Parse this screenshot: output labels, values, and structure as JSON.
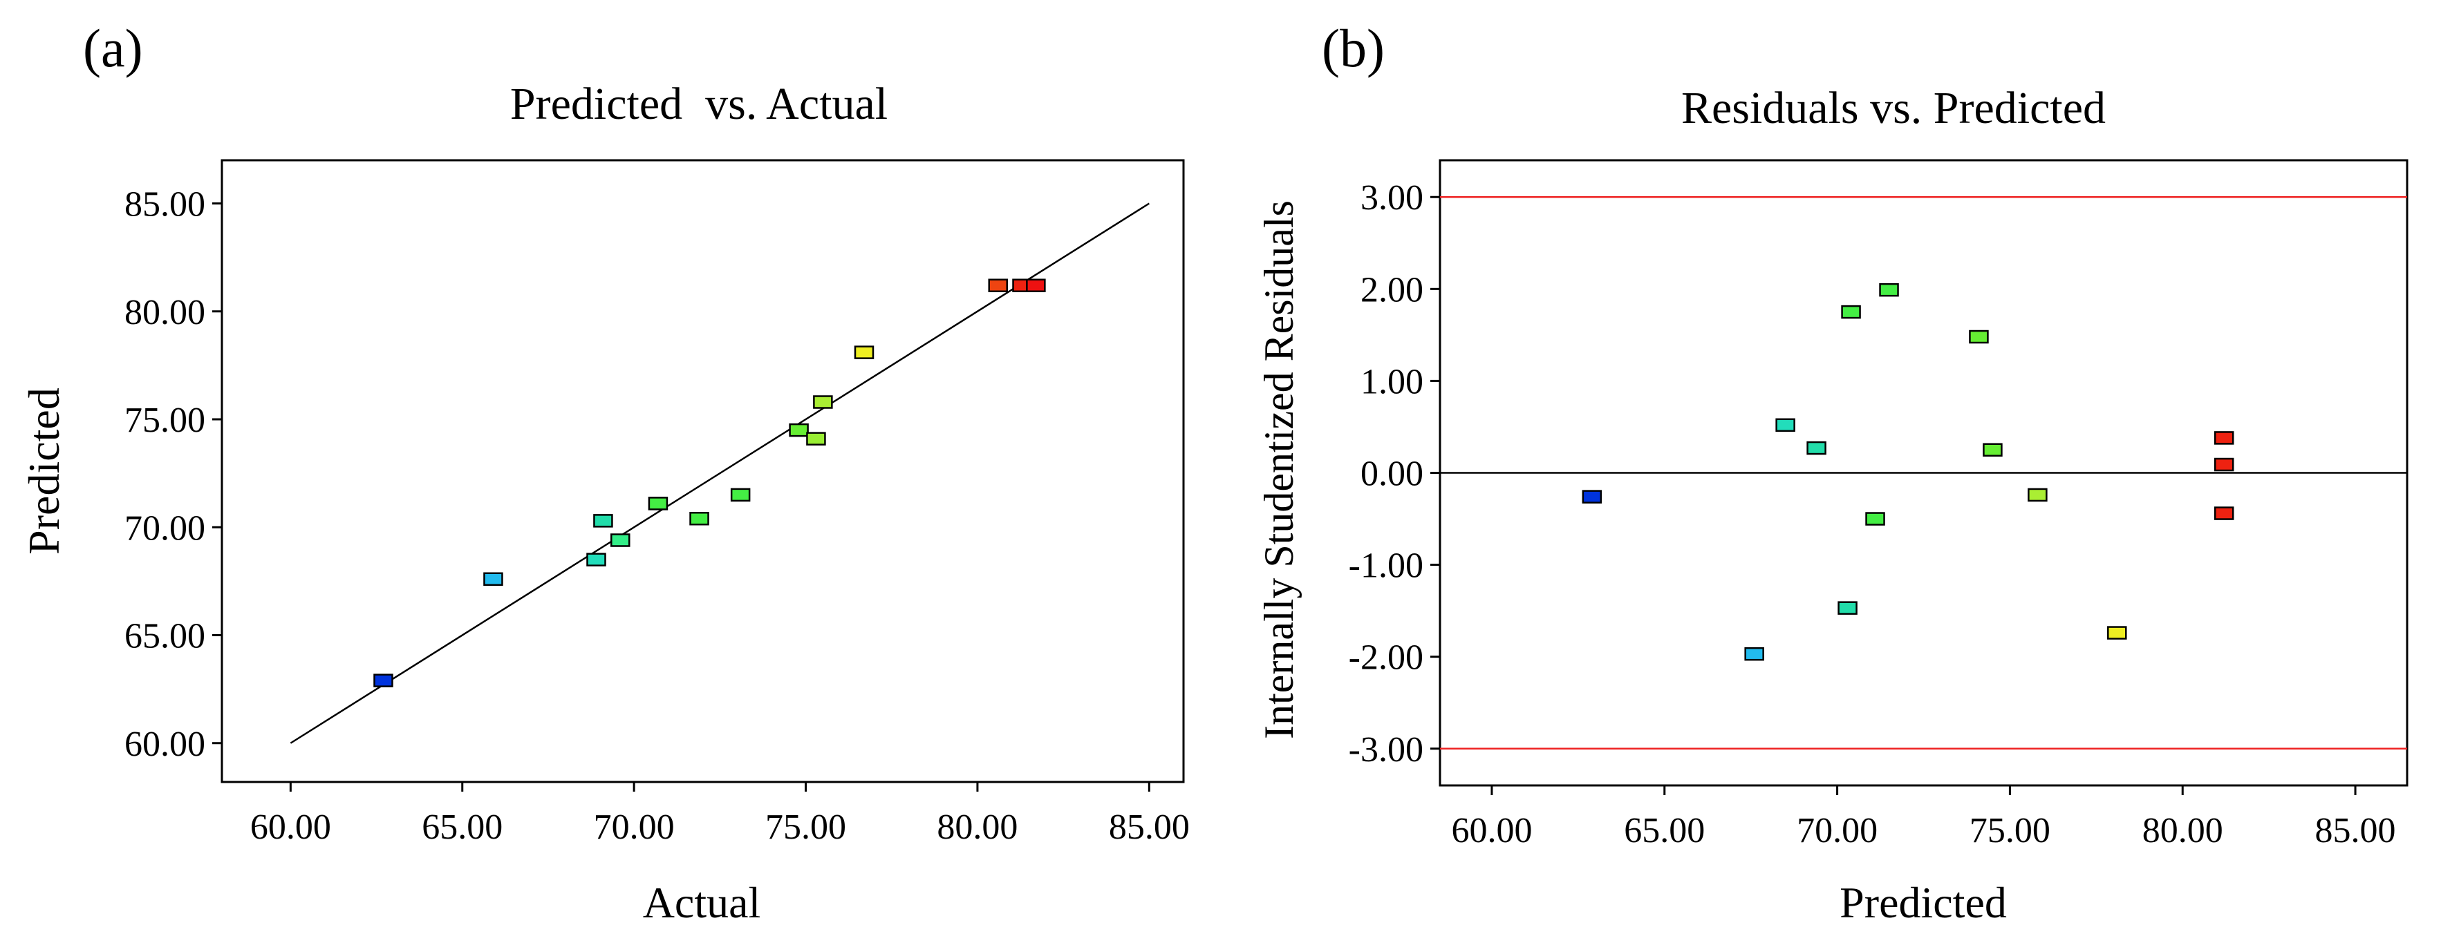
{
  "chart_data": [
    {
      "panel_label": "(a)",
      "type": "scatter",
      "title": "Predicted  vs. Actual",
      "xlabel": "Actual",
      "ylabel": "Predicted",
      "xlim": [
        58.0,
        86.0
      ],
      "ylim": [
        58.2,
        87.0
      ],
      "xticks": [
        60,
        65,
        70,
        75,
        80,
        85
      ],
      "xtick_labels": [
        "60.00",
        "65.00",
        "70.00",
        "75.00",
        "80.00",
        "85.00"
      ],
      "yticks": [
        60,
        65,
        70,
        75,
        80,
        85
      ],
      "ytick_labels": [
        "60.00",
        "65.00",
        "70.00",
        "75.00",
        "80.00",
        "85.00"
      ],
      "reference_line": {
        "from": [
          60,
          60
        ],
        "to": [
          85,
          85
        ],
        "color": "#000000"
      },
      "points": [
        {
          "x": 62.7,
          "y": 62.9,
          "color": "#0033dd"
        },
        {
          "x": 65.9,
          "y": 67.6,
          "color": "#22bbee"
        },
        {
          "x": 68.9,
          "y": 68.5,
          "color": "#22ddbb"
        },
        {
          "x": 69.1,
          "y": 70.3,
          "color": "#22ddaa"
        },
        {
          "x": 69.6,
          "y": 69.4,
          "color": "#33ee88"
        },
        {
          "x": 70.7,
          "y": 71.1,
          "color": "#44ee44"
        },
        {
          "x": 71.9,
          "y": 70.4,
          "color": "#44ee44"
        },
        {
          "x": 73.1,
          "y": 71.5,
          "color": "#44ee44"
        },
        {
          "x": 74.8,
          "y": 74.5,
          "color": "#66ee33"
        },
        {
          "x": 75.3,
          "y": 74.1,
          "color": "#99ee33"
        },
        {
          "x": 75.5,
          "y": 75.8,
          "color": "#aaee33"
        },
        {
          "x": 76.7,
          "y": 78.1,
          "color": "#eeee22"
        },
        {
          "x": 80.6,
          "y": 81.2,
          "color": "#ee4411"
        },
        {
          "x": 81.3,
          "y": 81.2,
          "color": "#ee2211"
        },
        {
          "x": 81.7,
          "y": 81.2,
          "color": "#ee1111"
        }
      ]
    },
    {
      "panel_label": "(b)",
      "type": "scatter",
      "title": "Residuals vs. Predicted",
      "xlabel": "Predicted",
      "ylabel": "Internally Studentized Residuals",
      "xlim": [
        58.5,
        86.5
      ],
      "ylim": [
        -3.4,
        3.4
      ],
      "xticks": [
        60,
        65,
        70,
        75,
        80,
        85
      ],
      "xtick_labels": [
        "60.00",
        "65.00",
        "70.00",
        "75.00",
        "80.00",
        "85.00"
      ],
      "yticks": [
        3,
        2,
        1,
        0,
        -1,
        -2,
        -3
      ],
      "ytick_labels": [
        "3.00",
        "2.00",
        "1.00",
        "0.00",
        "-1.00",
        "-2.00",
        "-3.00"
      ],
      "limit_lines": [
        {
          "y": 3.0,
          "color": "#ee2222"
        },
        {
          "y": -3.0,
          "color": "#ee2222"
        }
      ],
      "zero_line": {
        "y": 0,
        "color": "#000000"
      },
      "points": [
        {
          "x": 62.9,
          "y": -0.26,
          "color": "#0033dd"
        },
        {
          "x": 67.6,
          "y": -1.97,
          "color": "#22bbee"
        },
        {
          "x": 68.5,
          "y": 0.52,
          "color": "#22ddbb"
        },
        {
          "x": 69.4,
          "y": 0.27,
          "color": "#22ddaa"
        },
        {
          "x": 70.3,
          "y": -1.47,
          "color": "#22ddaa"
        },
        {
          "x": 70.4,
          "y": 1.75,
          "color": "#44ee44"
        },
        {
          "x": 71.1,
          "y": -0.5,
          "color": "#44ee44"
        },
        {
          "x": 71.5,
          "y": 1.99,
          "color": "#44ee44"
        },
        {
          "x": 74.1,
          "y": 1.48,
          "color": "#66ee33"
        },
        {
          "x": 74.5,
          "y": 0.25,
          "color": "#66ee33"
        },
        {
          "x": 75.8,
          "y": -0.24,
          "color": "#aaee33"
        },
        {
          "x": 78.1,
          "y": -1.74,
          "color": "#eeee22"
        },
        {
          "x": 81.2,
          "y": 0.38,
          "color": "#ee2211"
        },
        {
          "x": 81.2,
          "y": 0.09,
          "color": "#ee2211"
        },
        {
          "x": 81.2,
          "y": -0.44,
          "color": "#ee2211"
        }
      ]
    }
  ]
}
